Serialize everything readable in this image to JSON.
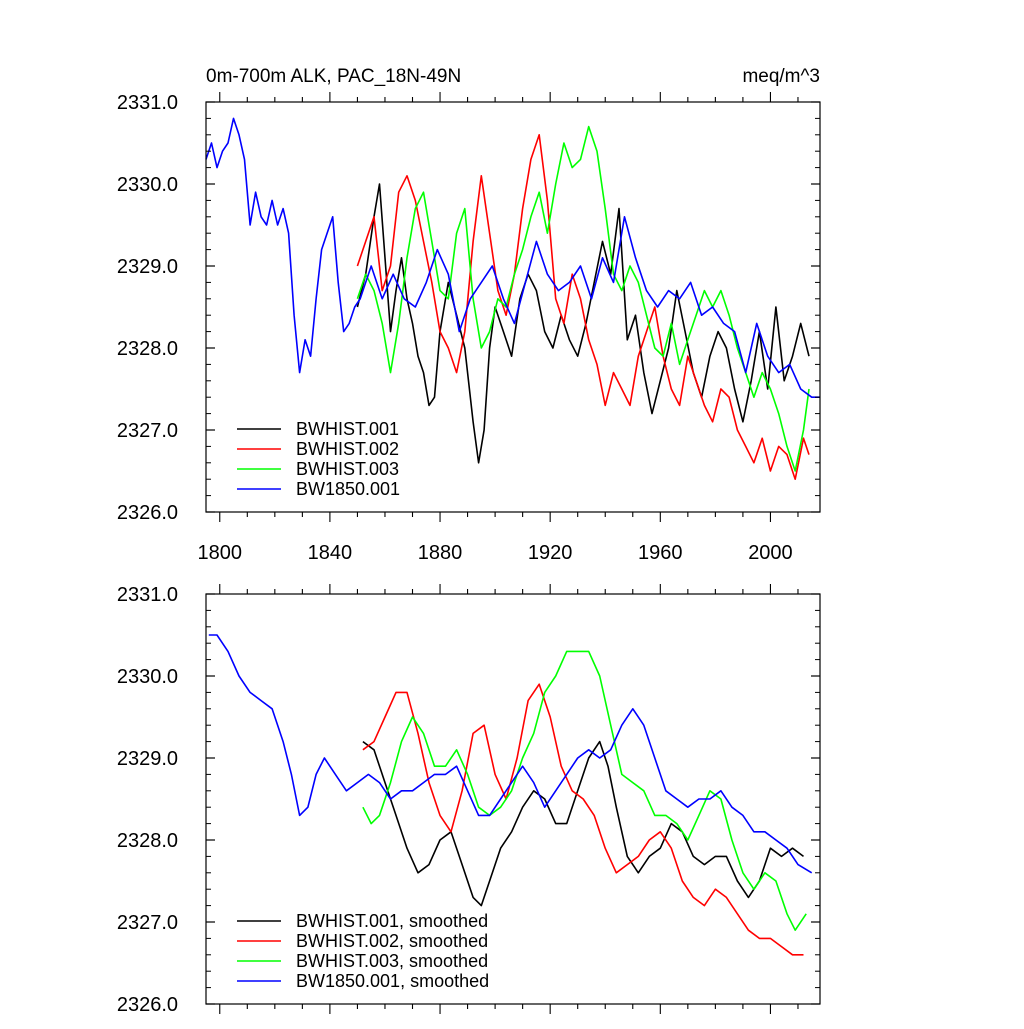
{
  "chart_data": [
    {
      "type": "line",
      "title": "0m-700m ALK, PAC_18N-49N",
      "units": "meq/m^3",
      "xlim": [
        1795,
        2018
      ],
      "ylim": [
        2326.0,
        2331.0
      ],
      "x_ticks": [
        1800,
        1840,
        1880,
        1920,
        1960,
        2000
      ],
      "y_ticks": [
        2326.0,
        2327.0,
        2328.0,
        2329.0,
        2330.0,
        2331.0
      ],
      "y_tick_labels": [
        "2326.0",
        "2327.0",
        "2328.0",
        "2329.0",
        "2330.0",
        "2331.0"
      ],
      "x_tick_labels": [
        "1800",
        "1840",
        "1880",
        "1920",
        "1960",
        "2000"
      ],
      "legend_position": "bottom-left",
      "series": [
        {
          "name": "BWHIST.001",
          "color": "#000000",
          "x": [
            1850,
            1853,
            1856,
            1858,
            1860,
            1862,
            1864,
            1866,
            1868,
            1870,
            1872,
            1874,
            1876,
            1878,
            1880,
            1883,
            1886,
            1889,
            1892,
            1894,
            1896,
            1898,
            1900,
            1903,
            1906,
            1909,
            1912,
            1915,
            1918,
            1921,
            1924,
            1927,
            1930,
            1933,
            1936,
            1939,
            1942,
            1945,
            1948,
            1951,
            1954,
            1957,
            1960,
            1963,
            1966,
            1969,
            1972,
            1975,
            1978,
            1981,
            1984,
            1987,
            1990,
            1993,
            1996,
            1999,
            2002,
            2005,
            2008,
            2011,
            2014
          ],
          "y": [
            2328.5,
            2328.9,
            2329.6,
            2330.0,
            2329.1,
            2328.2,
            2328.7,
            2329.1,
            2328.6,
            2328.3,
            2327.9,
            2327.7,
            2327.3,
            2327.4,
            2328.2,
            2328.8,
            2328.4,
            2328.0,
            2327.1,
            2326.6,
            2327.0,
            2328.0,
            2328.5,
            2328.2,
            2327.9,
            2328.6,
            2328.9,
            2328.7,
            2328.2,
            2328.0,
            2328.4,
            2328.1,
            2327.9,
            2328.3,
            2328.8,
            2329.3,
            2328.9,
            2329.7,
            2328.1,
            2328.4,
            2327.7,
            2327.2,
            2327.6,
            2328.0,
            2328.7,
            2328.2,
            2327.7,
            2327.4,
            2327.9,
            2328.2,
            2328.0,
            2327.5,
            2327.1,
            2327.6,
            2328.2,
            2327.5,
            2328.5,
            2327.6,
            2327.9,
            2328.3,
            2327.9
          ]
        },
        {
          "name": "BWHIST.002",
          "color": "#ff0000",
          "x": [
            1850,
            1853,
            1856,
            1859,
            1862,
            1865,
            1868,
            1871,
            1874,
            1877,
            1880,
            1883,
            1886,
            1889,
            1892,
            1895,
            1898,
            1901,
            1904,
            1907,
            1910,
            1913,
            1916,
            1919,
            1922,
            1925,
            1928,
            1931,
            1934,
            1937,
            1940,
            1943,
            1946,
            1949,
            1952,
            1955,
            1958,
            1961,
            1964,
            1967,
            1970,
            1973,
            1976,
            1979,
            1982,
            1985,
            1988,
            1991,
            1994,
            1997,
            2000,
            2003,
            2006,
            2009,
            2012,
            2014
          ],
          "y": [
            2329.0,
            2329.3,
            2329.6,
            2328.7,
            2329.0,
            2329.9,
            2330.1,
            2329.8,
            2329.3,
            2328.8,
            2328.2,
            2328.0,
            2327.7,
            2328.2,
            2329.3,
            2330.1,
            2329.4,
            2328.7,
            2328.4,
            2328.9,
            2329.7,
            2330.3,
            2330.6,
            2329.8,
            2328.6,
            2328.3,
            2328.9,
            2328.6,
            2328.1,
            2327.8,
            2327.3,
            2327.7,
            2327.5,
            2327.3,
            2327.9,
            2328.2,
            2328.5,
            2327.9,
            2327.5,
            2327.3,
            2327.9,
            2327.6,
            2327.3,
            2327.1,
            2327.5,
            2327.4,
            2327.0,
            2326.8,
            2326.6,
            2326.9,
            2326.5,
            2326.8,
            2326.7,
            2326.4,
            2326.9,
            2326.7
          ]
        },
        {
          "name": "BWHIST.003",
          "color": "#00ff00",
          "x": [
            1850,
            1853,
            1856,
            1859,
            1862,
            1865,
            1868,
            1871,
            1874,
            1877,
            1880,
            1883,
            1886,
            1889,
            1892,
            1895,
            1898,
            1901,
            1904,
            1907,
            1910,
            1913,
            1916,
            1919,
            1922,
            1925,
            1928,
            1931,
            1934,
            1937,
            1940,
            1943,
            1946,
            1949,
            1952,
            1955,
            1958,
            1961,
            1964,
            1967,
            1970,
            1973,
            1976,
            1979,
            1982,
            1985,
            1988,
            1991,
            1994,
            1997,
            2000,
            2003,
            2006,
            2009,
            2012,
            2014
          ],
          "y": [
            2328.6,
            2328.9,
            2328.7,
            2328.3,
            2327.7,
            2328.3,
            2329.1,
            2329.7,
            2329.9,
            2329.3,
            2328.7,
            2328.6,
            2329.4,
            2329.7,
            2328.6,
            2328.0,
            2328.2,
            2328.6,
            2328.5,
            2328.9,
            2329.2,
            2329.6,
            2329.9,
            2329.4,
            2330.0,
            2330.5,
            2330.2,
            2330.3,
            2330.7,
            2330.4,
            2329.7,
            2328.9,
            2328.7,
            2329.0,
            2328.8,
            2328.4,
            2328.0,
            2327.9,
            2328.3,
            2327.8,
            2328.1,
            2328.4,
            2328.7,
            2328.5,
            2328.7,
            2328.4,
            2328.0,
            2327.7,
            2327.4,
            2327.7,
            2327.5,
            2327.2,
            2326.8,
            2326.5,
            2327.0,
            2327.5
          ]
        },
        {
          "name": "BW1850.001",
          "color": "#0000ff",
          "x": [
            1795,
            1797,
            1799,
            1801,
            1803,
            1805,
            1807,
            1809,
            1811,
            1813,
            1815,
            1817,
            1819,
            1821,
            1823,
            1825,
            1827,
            1829,
            1831,
            1833,
            1835,
            1837,
            1839,
            1841,
            1843,
            1845,
            1847,
            1849,
            1851,
            1855,
            1859,
            1863,
            1867,
            1871,
            1875,
            1879,
            1883,
            1887,
            1891,
            1895,
            1899,
            1903,
            1907,
            1911,
            1915,
            1919,
            1923,
            1927,
            1931,
            1935,
            1939,
            1943,
            1947,
            1951,
            1955,
            1959,
            1963,
            1967,
            1971,
            1975,
            1979,
            1983,
            1987,
            1991,
            1995,
            1999,
            2003,
            2007,
            2011,
            2015,
            2018
          ],
          "y": [
            2330.3,
            2330.5,
            2330.2,
            2330.4,
            2330.5,
            2330.8,
            2330.6,
            2330.3,
            2329.5,
            2329.9,
            2329.6,
            2329.5,
            2329.8,
            2329.5,
            2329.7,
            2329.4,
            2328.4,
            2327.7,
            2328.1,
            2327.9,
            2328.6,
            2329.2,
            2329.4,
            2329.6,
            2328.8,
            2328.2,
            2328.3,
            2328.5,
            2328.6,
            2329.0,
            2328.6,
            2328.9,
            2328.6,
            2328.5,
            2328.8,
            2329.2,
            2328.9,
            2328.2,
            2328.6,
            2328.8,
            2329.0,
            2328.6,
            2328.3,
            2328.8,
            2329.3,
            2328.9,
            2328.7,
            2328.8,
            2329.0,
            2328.6,
            2329.1,
            2328.8,
            2329.6,
            2329.1,
            2328.7,
            2328.5,
            2328.7,
            2328.6,
            2328.8,
            2328.4,
            2328.5,
            2328.3,
            2328.2,
            2327.7,
            2328.3,
            2327.9,
            2327.7,
            2327.8,
            2327.5,
            2327.4,
            2327.4
          ]
        }
      ]
    },
    {
      "type": "line",
      "xlim": [
        1795,
        2018
      ],
      "ylim": [
        2326.0,
        2331.0
      ],
      "x_ticks": [
        1800,
        1840,
        1880,
        1920,
        1960,
        2000
      ],
      "y_ticks": [
        2326.0,
        2327.0,
        2328.0,
        2329.0,
        2330.0,
        2331.0
      ],
      "y_tick_labels": [
        "2326.0",
        "2327.0",
        "2328.0",
        "2329.0",
        "2330.0",
        "2331.0"
      ],
      "legend_position": "bottom-left",
      "series": [
        {
          "name": "BWHIST.001, smoothed",
          "color": "#000000",
          "x": [
            1852,
            1856,
            1860,
            1864,
            1868,
            1872,
            1876,
            1880,
            1884,
            1888,
            1892,
            1895,
            1898,
            1902,
            1906,
            1910,
            1914,
            1918,
            1922,
            1926,
            1930,
            1934,
            1938,
            1941,
            1944,
            1948,
            1952,
            1956,
            1960,
            1964,
            1968,
            1972,
            1976,
            1980,
            1984,
            1988,
            1992,
            1996,
            2000,
            2004,
            2008,
            2012
          ],
          "y": [
            2329.2,
            2329.1,
            2328.7,
            2328.3,
            2327.9,
            2327.6,
            2327.7,
            2328.0,
            2328.1,
            2327.7,
            2327.3,
            2327.2,
            2327.5,
            2327.9,
            2328.1,
            2328.4,
            2328.6,
            2328.5,
            2328.2,
            2328.2,
            2328.6,
            2329.0,
            2329.2,
            2328.9,
            2328.4,
            2327.8,
            2327.6,
            2327.8,
            2327.9,
            2328.2,
            2328.1,
            2327.8,
            2327.7,
            2327.8,
            2327.8,
            2327.5,
            2327.3,
            2327.5,
            2327.9,
            2327.8,
            2327.9,
            2327.8
          ]
        },
        {
          "name": "BWHIST.002, smoothed",
          "color": "#ff0000",
          "x": [
            1852,
            1856,
            1860,
            1864,
            1868,
            1872,
            1876,
            1880,
            1884,
            1888,
            1892,
            1896,
            1900,
            1904,
            1908,
            1912,
            1916,
            1920,
            1924,
            1928,
            1932,
            1936,
            1940,
            1944,
            1948,
            1952,
            1956,
            1960,
            1964,
            1968,
            1972,
            1976,
            1980,
            1984,
            1988,
            1992,
            1996,
            2000,
            2004,
            2008,
            2012
          ],
          "y": [
            2329.1,
            2329.2,
            2329.5,
            2329.8,
            2329.8,
            2329.3,
            2328.7,
            2328.3,
            2328.1,
            2328.6,
            2329.3,
            2329.4,
            2328.8,
            2328.5,
            2329.0,
            2329.7,
            2329.9,
            2329.5,
            2328.9,
            2328.6,
            2328.5,
            2328.3,
            2327.9,
            2327.6,
            2327.7,
            2327.8,
            2328.0,
            2328.1,
            2327.9,
            2327.5,
            2327.3,
            2327.2,
            2327.4,
            2327.3,
            2327.1,
            2326.9,
            2326.8,
            2326.8,
            2326.7,
            2326.6,
            2326.6
          ]
        },
        {
          "name": "BWHIST.003, smoothed",
          "color": "#00ff00",
          "x": [
            1852,
            1855,
            1858,
            1862,
            1866,
            1870,
            1874,
            1878,
            1882,
            1886,
            1890,
            1894,
            1898,
            1902,
            1906,
            1910,
            1914,
            1918,
            1922,
            1926,
            1930,
            1934,
            1938,
            1942,
            1946,
            1950,
            1954,
            1958,
            1962,
            1966,
            1970,
            1974,
            1978,
            1982,
            1986,
            1990,
            1994,
            1998,
            2002,
            2006,
            2009,
            2013
          ],
          "y": [
            2328.4,
            2328.2,
            2328.3,
            2328.7,
            2329.2,
            2329.5,
            2329.3,
            2328.9,
            2328.9,
            2329.1,
            2328.8,
            2328.4,
            2328.3,
            2328.4,
            2328.6,
            2329.0,
            2329.3,
            2329.8,
            2330.0,
            2330.3,
            2330.3,
            2330.3,
            2330.0,
            2329.4,
            2328.8,
            2328.7,
            2328.6,
            2328.3,
            2328.3,
            2328.2,
            2328.0,
            2328.3,
            2328.6,
            2328.5,
            2328.0,
            2327.6,
            2327.4,
            2327.6,
            2327.5,
            2327.1,
            2326.9,
            2327.1
          ]
        },
        {
          "name": "BW1850.001, smoothed",
          "color": "#0000ff",
          "x": [
            1796,
            1799,
            1803,
            1807,
            1811,
            1815,
            1819,
            1823,
            1826,
            1829,
            1832,
            1835,
            1838,
            1842,
            1846,
            1850,
            1854,
            1858,
            1862,
            1866,
            1870,
            1874,
            1878,
            1882,
            1886,
            1890,
            1894,
            1898,
            1902,
            1906,
            1910,
            1914,
            1918,
            1922,
            1926,
            1930,
            1934,
            1938,
            1942,
            1946,
            1950,
            1954,
            1958,
            1962,
            1966,
            1970,
            1974,
            1978,
            1982,
            1986,
            1990,
            1994,
            1998,
            2002,
            2006,
            2010,
            2015
          ],
          "y": [
            2330.5,
            2330.5,
            2330.3,
            2330.0,
            2329.8,
            2329.7,
            2329.6,
            2329.2,
            2328.8,
            2328.3,
            2328.4,
            2328.8,
            2329.0,
            2328.8,
            2328.6,
            2328.7,
            2328.8,
            2328.7,
            2328.5,
            2328.6,
            2328.6,
            2328.7,
            2328.8,
            2328.8,
            2328.9,
            2328.6,
            2328.3,
            2328.3,
            2328.5,
            2328.7,
            2328.9,
            2328.7,
            2328.4,
            2328.6,
            2328.8,
            2329.0,
            2329.1,
            2329.0,
            2329.1,
            2329.4,
            2329.6,
            2329.4,
            2329.0,
            2328.6,
            2328.5,
            2328.4,
            2328.5,
            2328.5,
            2328.6,
            2328.4,
            2328.3,
            2328.1,
            2328.1,
            2328.0,
            2327.9,
            2327.7,
            2327.6
          ]
        }
      ]
    }
  ]
}
